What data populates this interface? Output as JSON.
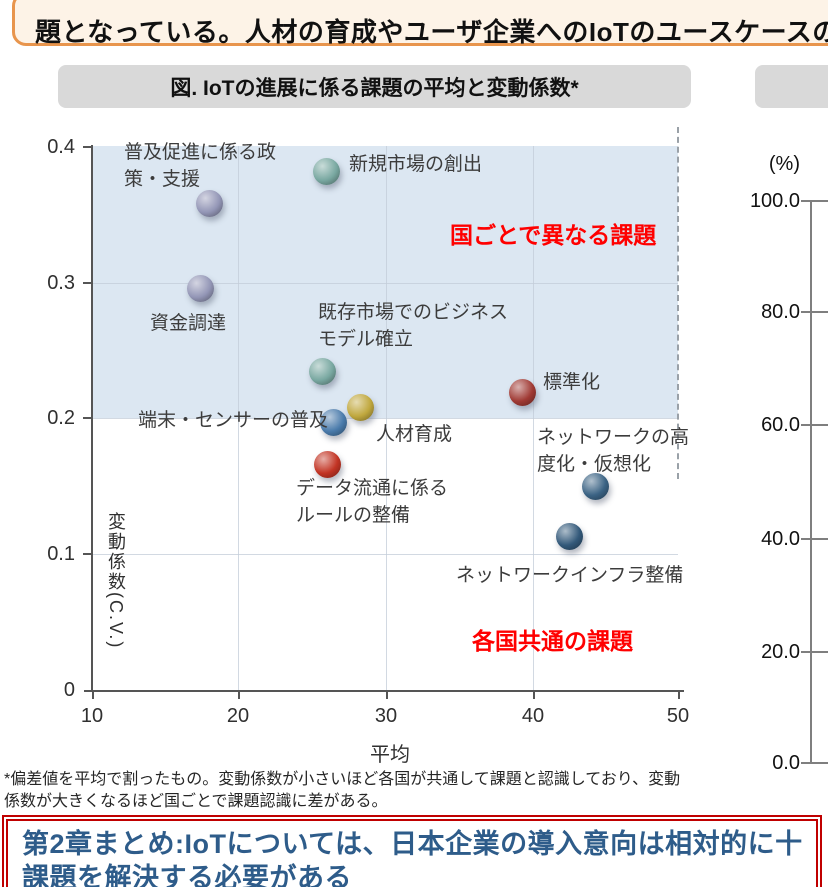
{
  "page": {
    "top_banner_text": "題となっている。人材の育成やユーザ企業へのIoTのユースケースの",
    "fig_title": "図. IoTの進展に係る課題の平均と変動係数*",
    "footnote": "*偏差値を平均で割ったもの。変動係数が小さいほど各国が共通して課題と認識しており、変動\n係数が大きくなるほど国ごとで課題認識に差がある。",
    "summary_text": "第2章まとめ:IoTについては、日本企業の導入意向は相対的に十\n課題を解決する必要がある"
  },
  "colors": {
    "banner_border": "#e8954d",
    "banner_fill": "#fdf3e7",
    "title_box_fill": "#d9d9d9",
    "shaded_band": "#dce7f2",
    "annotation_red": "#ff0000",
    "summary_border": "#c00000",
    "summary_text": "#2e5c8a"
  },
  "chart_data": {
    "type": "scatter",
    "title": "図. IoTの進展に係る課題の平均と変動係数*",
    "xlabel": "平均",
    "ylabel": "変動係数(C.V.)",
    "xlim": [
      10,
      50
    ],
    "ylim": [
      0,
      0.4
    ],
    "x_tick_labels": [
      "10",
      "20",
      "30",
      "40",
      "50"
    ],
    "y_tick_labels": [
      "0.4",
      "0.3",
      "0.2",
      "0.1",
      "0"
    ],
    "grid": true,
    "shaded_band": {
      "y_from": 0.2,
      "y_to": 0.4,
      "color": "#dce7f2"
    },
    "annotations": [
      {
        "text": "国ごとで異なる課題",
        "color": "#ff0000",
        "region": "upper"
      },
      {
        "text": "各国共通の課題",
        "color": "#ff0000",
        "region": "lower"
      }
    ],
    "points": [
      {
        "label": "普及促進に係る政策・支援",
        "display": "普及促進に係る政\n策・支援",
        "x": 18.0,
        "y": 0.358,
        "color": "#9396b6"
      },
      {
        "label": "新規市場の創出",
        "display": "新規市場の創出",
        "x": 26.0,
        "y": 0.381,
        "color": "#79a8a1"
      },
      {
        "label": "資金調達",
        "display": "資金調達",
        "x": 17.4,
        "y": 0.295,
        "color": "#9396b6"
      },
      {
        "label": "既存市場でのビジネスモデル確立",
        "display": "既存市場でのビジネス\nモデル確立",
        "x": 25.7,
        "y": 0.234,
        "color": "#79a8a1"
      },
      {
        "label": "人材育成",
        "display": "人材育成",
        "x": 28.3,
        "y": 0.208,
        "color": "#c0a83e"
      },
      {
        "label": "端末・センサーの普及",
        "display": "端末・センサーの普及",
        "x": 26.5,
        "y": 0.197,
        "color": "#4a7bab"
      },
      {
        "label": "データ流通に係るルールの整備",
        "display": "データ流通に係る\nルールの整備",
        "x": 26.1,
        "y": 0.166,
        "color": "#c23424"
      },
      {
        "label": "標準化",
        "display": "標準化",
        "x": 39.4,
        "y": 0.219,
        "color": "#a03a34"
      },
      {
        "label": "ネットワークの高度化・仮想化",
        "display": "ネットワークの高\n度化・仮想化",
        "x": 44.4,
        "y": 0.15,
        "color": "#3b6384"
      },
      {
        "label": "ネットワークインフラ整備",
        "display": "ネットワークインフラ整備",
        "x": 42.6,
        "y": 0.113,
        "color": "#33597a"
      }
    ]
  },
  "right_chart_axis": {
    "unit_label": "(%)",
    "y_tick_labels": [
      "100.0",
      "80.0",
      "60.0",
      "40.0",
      "20.0",
      "0.0"
    ]
  }
}
